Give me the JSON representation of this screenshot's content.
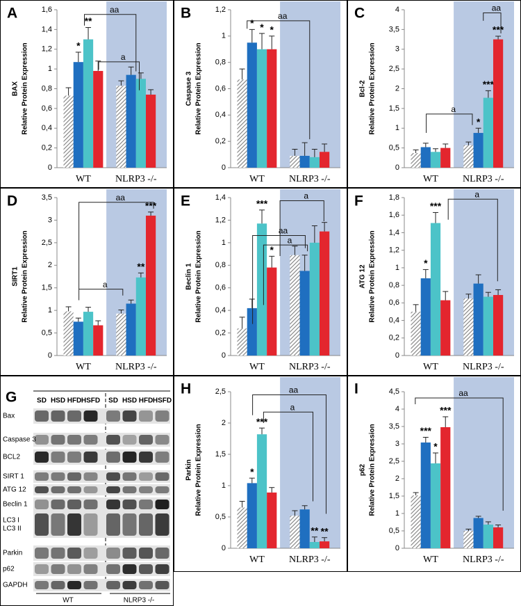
{
  "chart_data": [
    {
      "type": "bar",
      "label": "A",
      "protein": "BAX",
      "ylabel": "Relative Protein Expression",
      "categories": [
        "WT",
        "NLRP3 -/-"
      ],
      "series": [
        {
          "color": "#7f7f7f",
          "pattern": "hatch",
          "values": [
            0.73,
            0.83
          ],
          "errors": [
            0.08,
            0.05
          ],
          "significance": [
            null,
            null
          ]
        },
        {
          "color": "#1f6fc0",
          "values": [
            1.07,
            0.94
          ],
          "errors": [
            0.1,
            0.08
          ],
          "significance": [
            "*",
            null
          ]
        },
        {
          "color": "#4cc3c8",
          "values": [
            1.3,
            0.9
          ],
          "errors": [
            0.12,
            0.06
          ],
          "significance": [
            "**",
            null
          ]
        },
        {
          "color": "#e3262e",
          "values": [
            0.98,
            0.74
          ],
          "errors": [
            0.1,
            0.05
          ],
          "significance": [
            null,
            null
          ]
        }
      ],
      "annotations": [
        "aa",
        "a"
      ],
      "ylim": [
        0,
        1.6
      ],
      "yticks": [
        0,
        {
          "value": 0.2,
          "label": "0,2"
        },
        {
          "value": 0.4,
          "label": "0,4"
        },
        {
          "value": 0.6,
          "label": "0,6"
        },
        {
          "value": 0.8,
          "label": "0,8"
        },
        1,
        {
          "value": 1.2,
          "label": "1,2"
        },
        {
          "value": 1.4,
          "label": "1,4"
        },
        {
          "value": 1.6,
          "label": "1,6"
        }
      ]
    },
    {
      "type": "bar",
      "label": "B",
      "protein": "Caspase 3",
      "ylabel": "Relative Protein Expression",
      "categories": [
        "WT",
        "NLRP3 -/-"
      ],
      "series": [
        {
          "color": "#7f7f7f",
          "pattern": "hatch",
          "values": [
            0.67,
            0.09
          ],
          "errors": [
            0.08,
            0.05
          ],
          "significance": [
            null,
            null
          ]
        },
        {
          "color": "#1f6fc0",
          "values": [
            0.95,
            0.09
          ],
          "errors": [
            0.1,
            0.1
          ],
          "significance": [
            "*",
            null
          ]
        },
        {
          "color": "#4cc3c8",
          "values": [
            0.9,
            0.08
          ],
          "errors": [
            0.12,
            0.06
          ],
          "significance": [
            "*",
            null
          ]
        },
        {
          "color": "#e3262e",
          "values": [
            0.9,
            0.12
          ],
          "errors": [
            0.1,
            0.06
          ],
          "significance": [
            "*",
            null
          ]
        }
      ],
      "annotations": [
        "aa"
      ],
      "ylim": [
        0,
        1.2
      ],
      "yticks": [
        0,
        {
          "value": 0.2,
          "label": "0,2"
        },
        {
          "value": 0.4,
          "label": "0,4"
        },
        {
          "value": 0.6,
          "label": "0,6"
        },
        {
          "value": 0.8,
          "label": "0,8"
        },
        1,
        {
          "value": 1.2,
          "label": "1,2"
        }
      ]
    },
    {
      "type": "bar",
      "label": "C",
      "protein": "Bcl-2",
      "ylabel": "Relative Protein Expression",
      "categories": [
        "WT",
        "NLRP3 -/-"
      ],
      "series": [
        {
          "color": "#7f7f7f",
          "pattern": "hatch",
          "values": [
            0.37,
            0.57
          ],
          "errors": [
            0.08,
            0.08
          ],
          "significance": [
            null,
            null
          ]
        },
        {
          "color": "#1f6fc0",
          "values": [
            0.52,
            0.88
          ],
          "errors": [
            0.1,
            0.12
          ],
          "significance": [
            null,
            "*"
          ]
        },
        {
          "color": "#4cc3c8",
          "values": [
            0.4,
            1.77
          ],
          "errors": [
            0.08,
            0.18
          ],
          "significance": [
            null,
            "***"
          ]
        },
        {
          "color": "#e3262e",
          "values": [
            0.5,
            3.25
          ],
          "errors": [
            0.1,
            0.08
          ],
          "significance": [
            null,
            "***"
          ]
        }
      ],
      "annotations": [
        "aa",
        "a"
      ],
      "ylim": [
        0,
        4
      ],
      "yticks": [
        0,
        {
          "value": 0.5,
          "label": "0,5"
        },
        1,
        {
          "value": 1.5,
          "label": "1,5"
        },
        2,
        {
          "value": 2.5,
          "label": "2,5"
        },
        3,
        {
          "value": 3.5,
          "label": "3,5"
        },
        4
      ]
    },
    {
      "type": "bar",
      "label": "D",
      "protein": "SIRT1",
      "ylabel": "Relative Protein Expression",
      "categories": [
        "WT",
        "NLRP3 -/-"
      ],
      "series": [
        {
          "color": "#7f7f7f",
          "pattern": "hatch",
          "values": [
            0.98,
            0.93
          ],
          "errors": [
            0.1,
            0.08
          ],
          "significance": [
            null,
            null
          ]
        },
        {
          "color": "#1f6fc0",
          "values": [
            0.75,
            1.15
          ],
          "errors": [
            0.08,
            0.08
          ],
          "significance": [
            null,
            null
          ]
        },
        {
          "color": "#4cc3c8",
          "values": [
            0.97,
            1.73
          ],
          "errors": [
            0.1,
            0.1
          ],
          "significance": [
            null,
            "**"
          ]
        },
        {
          "color": "#e3262e",
          "values": [
            0.67,
            3.1
          ],
          "errors": [
            0.1,
            0.08
          ],
          "significance": [
            null,
            "***"
          ]
        }
      ],
      "annotations": [
        "aa",
        "a"
      ],
      "ylim": [
        0,
        3.5
      ],
      "yticks": [
        0,
        {
          "value": 0.5,
          "label": "0,5"
        },
        1,
        {
          "value": 1.5,
          "label": "1,5"
        },
        2,
        {
          "value": 2.5,
          "label": "2,5"
        },
        3,
        {
          "value": 3.5,
          "label": "3,5"
        }
      ]
    },
    {
      "type": "bar",
      "label": "E",
      "protein": "Beclin 1",
      "ylabel": "Relative Protein Expression",
      "categories": [
        "WT",
        "NLRP3 -/-"
      ],
      "series": [
        {
          "color": "#7f7f7f",
          "pattern": "hatch",
          "values": [
            0.24,
            0.89
          ],
          "errors": [
            0.1,
            0.08
          ],
          "significance": [
            null,
            null
          ]
        },
        {
          "color": "#1f6fc0",
          "values": [
            0.42,
            0.75
          ],
          "errors": [
            0.08,
            0.14
          ],
          "significance": [
            null,
            null
          ]
        },
        {
          "color": "#4cc3c8",
          "values": [
            1.17,
            1.0
          ],
          "errors": [
            0.12,
            0.15
          ],
          "significance": [
            "***",
            null
          ]
        },
        {
          "color": "#e3262e",
          "values": [
            0.78,
            1.1
          ],
          "errors": [
            0.1,
            0.08
          ],
          "significance": [
            "*",
            null
          ]
        }
      ],
      "annotations": [
        "aa",
        "a",
        "a"
      ],
      "ylim": [
        0,
        1.4
      ],
      "yticks": [
        0,
        {
          "value": 0.2,
          "label": "0,2"
        },
        {
          "value": 0.4,
          "label": "0,4"
        },
        {
          "value": 0.6,
          "label": "0,6"
        },
        {
          "value": 0.8,
          "label": "0,8"
        },
        1,
        {
          "value": 1.2,
          "label": "1,2"
        },
        {
          "value": 1.4,
          "label": "1,4"
        }
      ]
    },
    {
      "type": "bar",
      "label": "F",
      "protein": "ATG 12",
      "ylabel": "Relative Protein Expression",
      "categories": [
        "WT",
        "NLRP3 -/-"
      ],
      "series": [
        {
          "color": "#7f7f7f",
          "pattern": "hatch",
          "values": [
            0.5,
            0.65
          ],
          "errors": [
            0.08,
            0.05
          ],
          "significance": [
            null,
            null
          ]
        },
        {
          "color": "#1f6fc0",
          "values": [
            0.88,
            0.82
          ],
          "errors": [
            0.1,
            0.1
          ],
          "significance": [
            "*",
            null
          ]
        },
        {
          "color": "#4cc3c8",
          "values": [
            1.51,
            0.67
          ],
          "errors": [
            0.12,
            0.05
          ],
          "significance": [
            "***",
            null
          ]
        },
        {
          "color": "#e3262e",
          "values": [
            0.63,
            0.69
          ],
          "errors": [
            0.1,
            0.06
          ],
          "significance": [
            null,
            null
          ]
        }
      ],
      "annotations": [
        "a"
      ],
      "ylim": [
        0,
        1.8
      ],
      "yticks": [
        0,
        {
          "value": 0.2,
          "label": "0,2"
        },
        {
          "value": 0.4,
          "label": "0,4"
        },
        {
          "value": 0.6,
          "label": "0,6"
        },
        {
          "value": 0.8,
          "label": "0,8"
        },
        1,
        {
          "value": 1.2,
          "label": "1,2"
        },
        {
          "value": 1.4,
          "label": "1,4"
        },
        {
          "value": 1.6,
          "label": "1,6"
        },
        {
          "value": 1.8,
          "label": "1,8"
        }
      ]
    },
    {
      "type": "bar",
      "label": "H",
      "protein": "Parkin",
      "ylabel": "Relative Protein Expression",
      "categories": [
        "WT",
        "NLRP3 -/-"
      ],
      "series": [
        {
          "color": "#7f7f7f",
          "pattern": "hatch",
          "values": [
            0.65,
            0.52
          ],
          "errors": [
            0.1,
            0.08
          ],
          "significance": [
            null,
            null
          ]
        },
        {
          "color": "#1f6fc0",
          "values": [
            1.04,
            0.62
          ],
          "errors": [
            0.08,
            0.06
          ],
          "significance": [
            "*",
            null
          ]
        },
        {
          "color": "#4cc3c8",
          "values": [
            1.82,
            0.1
          ],
          "errors": [
            0.1,
            0.08
          ],
          "significance": [
            "***",
            "**"
          ]
        },
        {
          "color": "#e3262e",
          "values": [
            0.89,
            0.11
          ],
          "errors": [
            0.08,
            0.06
          ],
          "significance": [
            null,
            "**"
          ]
        }
      ],
      "annotations": [
        "aa",
        "a"
      ],
      "ylim": [
        0,
        2.5
      ],
      "yticks": [
        0,
        {
          "value": 0.5,
          "label": "0,5"
        },
        1,
        {
          "value": 1.5,
          "label": "1,5"
        },
        2,
        {
          "value": 2.5,
          "label": "2,5"
        }
      ]
    },
    {
      "type": "bar",
      "label": "I",
      "protein": "p62",
      "ylabel": "Relative Protein Expression",
      "categories": [
        "WT",
        "NLRP3 -/-"
      ],
      "series": [
        {
          "color": "#7f7f7f",
          "pattern": "hatch",
          "values": [
            1.52,
            0.5
          ],
          "errors": [
            0.08,
            0.05
          ],
          "significance": [
            null,
            null
          ]
        },
        {
          "color": "#1f6fc0",
          "values": [
            3.04,
            0.87
          ],
          "errors": [
            0.15,
            0.05
          ],
          "significance": [
            "***",
            null
          ]
        },
        {
          "color": "#4cc3c8",
          "values": [
            2.44,
            0.68
          ],
          "errors": [
            0.3,
            0.08
          ],
          "significance": [
            "*",
            null
          ]
        },
        {
          "color": "#e3262e",
          "values": [
            3.48,
            0.6
          ],
          "errors": [
            0.3,
            0.07
          ],
          "significance": [
            "***",
            null
          ]
        }
      ],
      "annotations": [
        "aa"
      ],
      "ylim": [
        0,
        4.5
      ],
      "yticks": [
        0,
        {
          "value": 0.5,
          "label": "0,5"
        },
        1,
        {
          "value": 1.5,
          "label": "1,5"
        },
        2,
        {
          "value": 2.5,
          "label": "2,5"
        },
        3,
        {
          "value": 3.5,
          "label": "3,5"
        },
        4,
        {
          "value": 4.5,
          "label": "4,5"
        }
      ]
    }
  ],
  "blot": {
    "label": "G",
    "lanes": [
      "SD",
      "HSD",
      "HFD",
      "HSFD",
      "SD",
      "HSD",
      "HFD",
      "HSFD"
    ],
    "rows": [
      "Bax",
      "Caspase 3",
      "BCL2",
      "SIRT 1",
      "ATG 12",
      "Beclin 1",
      [
        "LC3 I",
        "LC3 II"
      ],
      "Parkin",
      "p62",
      "GAPDH"
    ],
    "groups": [
      "WT",
      "NLRP3 -/-"
    ]
  }
}
